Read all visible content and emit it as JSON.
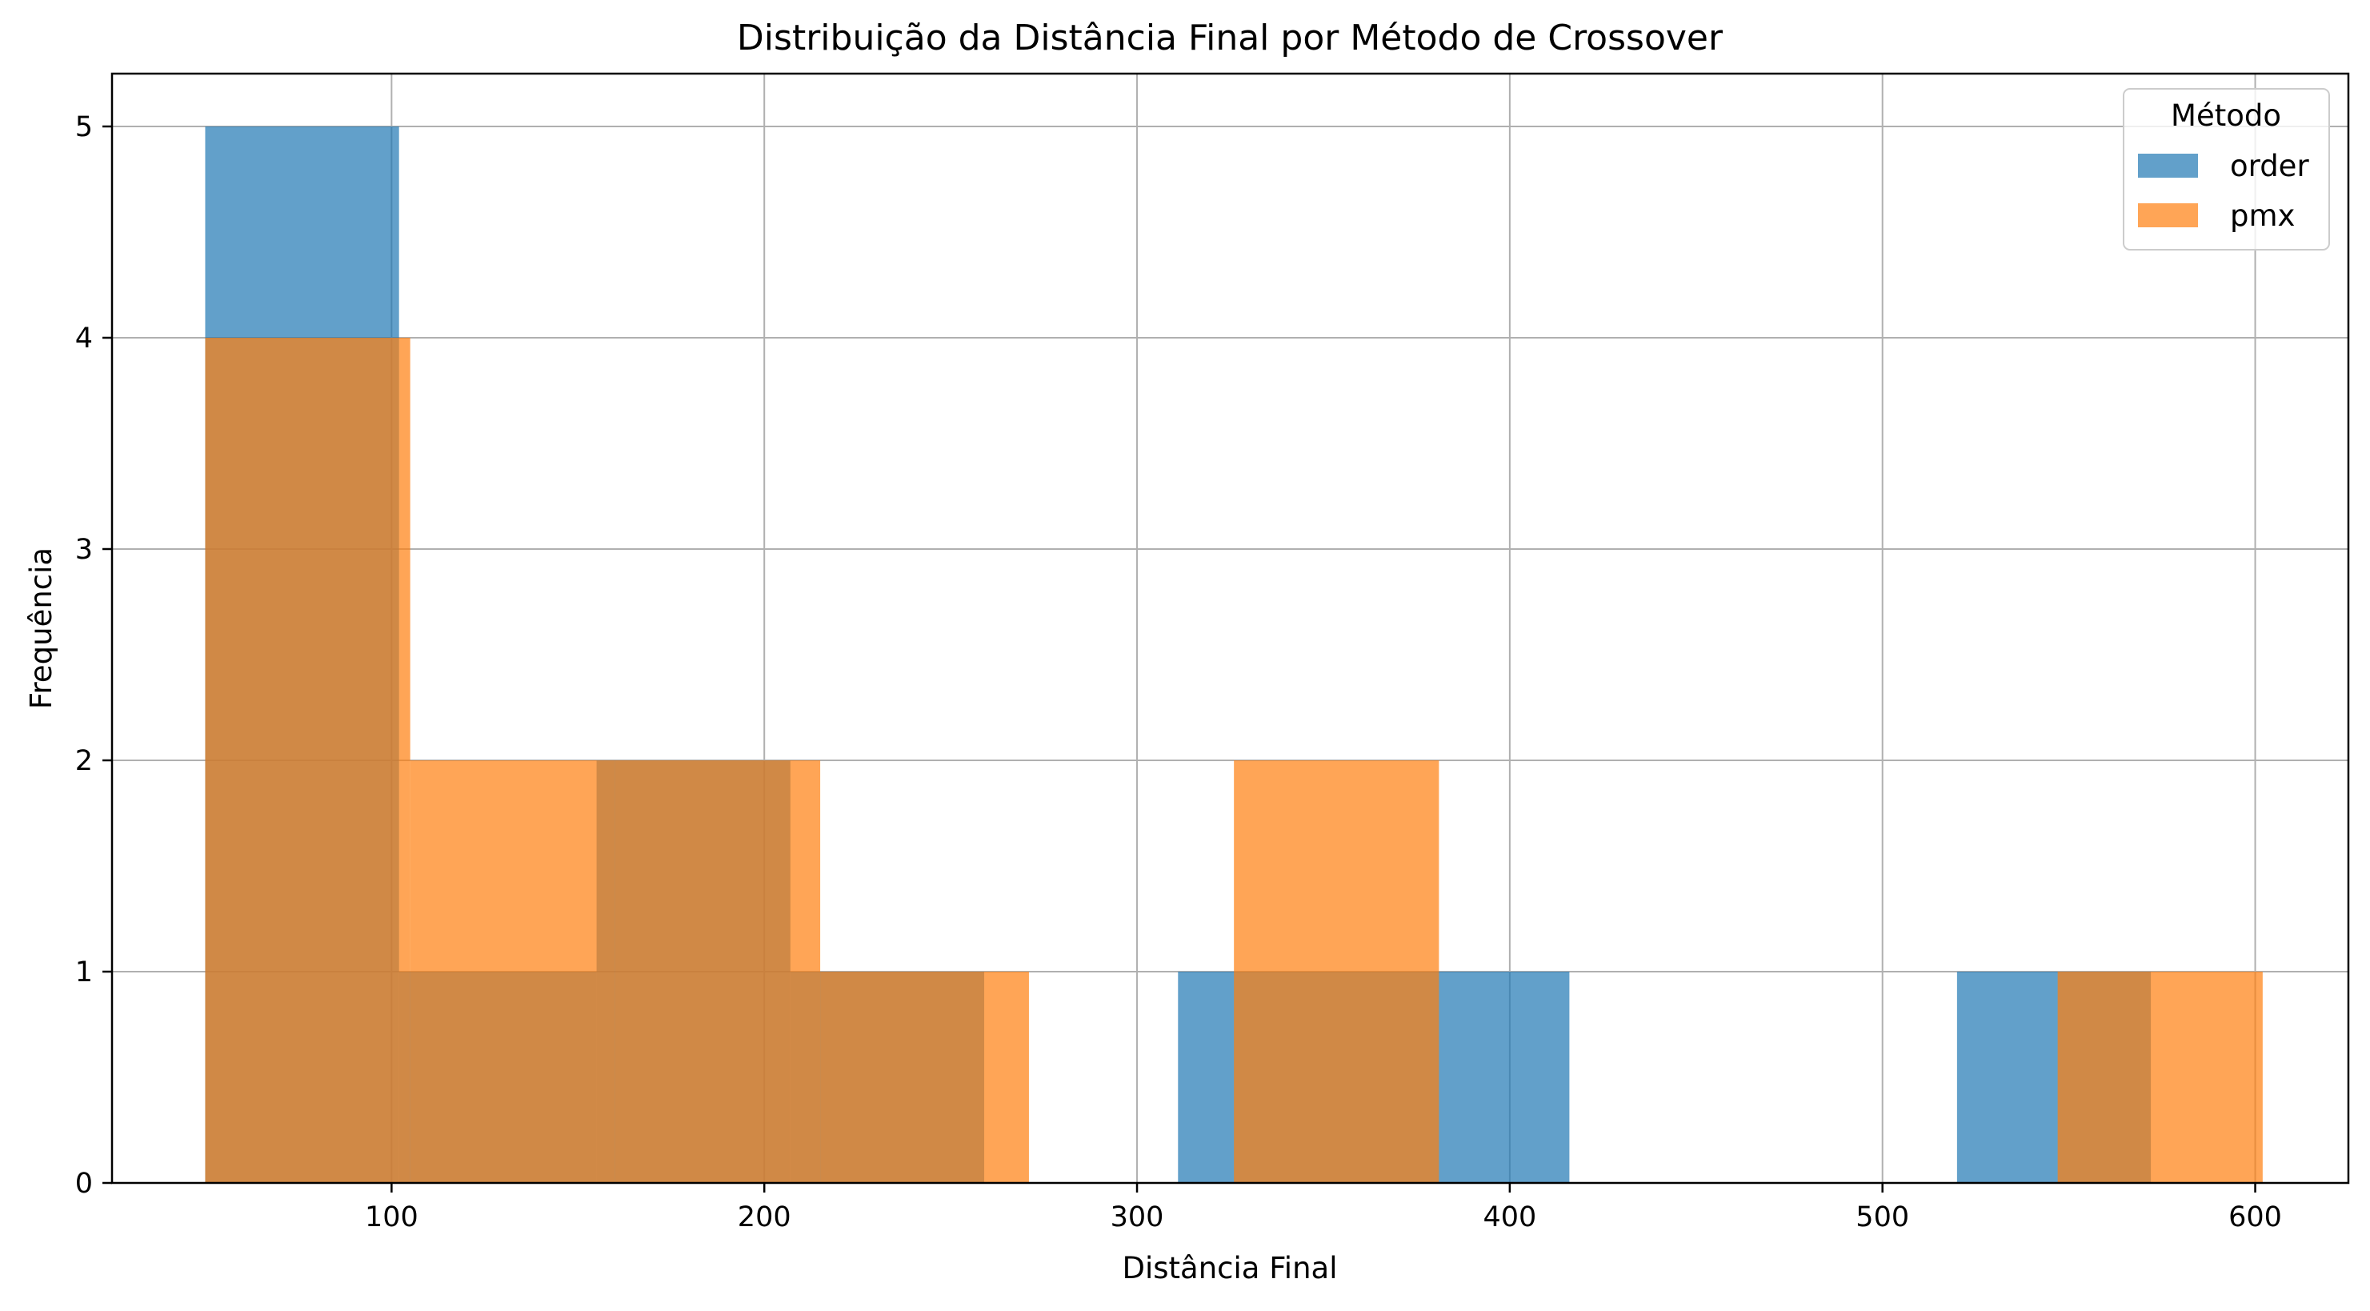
{
  "chart_data": {
    "type": "histogram",
    "title": "Distribuição da Distância Final por Método de Crossover",
    "xlabel": "Distância Final",
    "ylabel": "Frequência",
    "xlim": [
      25,
      625
    ],
    "ylim": [
      0,
      5.25
    ],
    "xticks": [
      100,
      200,
      300,
      400,
      500,
      600
    ],
    "yticks": [
      0,
      1,
      2,
      3,
      4,
      5
    ],
    "grid": true,
    "legend": {
      "title": "Método",
      "position": "top-right"
    },
    "series": [
      {
        "name": "order",
        "color": "#1f77b4",
        "opacity": 0.7,
        "bins": [
          {
            "x0": 50,
            "x1": 102,
            "count": 5
          },
          {
            "x0": 102,
            "x1": 155,
            "count": 1
          },
          {
            "x0": 155,
            "x1": 207,
            "count": 2
          },
          {
            "x0": 207,
            "x1": 259,
            "count": 1
          },
          {
            "x0": 259,
            "x1": 311,
            "count": 0
          },
          {
            "x0": 311,
            "x1": 363,
            "count": 1
          },
          {
            "x0": 363,
            "x1": 416,
            "count": 1
          },
          {
            "x0": 416,
            "x1": 468,
            "count": 0
          },
          {
            "x0": 468,
            "x1": 520,
            "count": 0
          },
          {
            "x0": 520,
            "x1": 572,
            "count": 1
          }
        ]
      },
      {
        "name": "pmx",
        "color": "#ff7f0e",
        "opacity": 0.7,
        "bins": [
          {
            "x0": 50,
            "x1": 105,
            "count": 4
          },
          {
            "x0": 105,
            "x1": 160,
            "count": 2
          },
          {
            "x0": 160,
            "x1": 215,
            "count": 2
          },
          {
            "x0": 215,
            "x1": 271,
            "count": 1
          },
          {
            "x0": 271,
            "x1": 326,
            "count": 0
          },
          {
            "x0": 326,
            "x1": 381,
            "count": 2
          },
          {
            "x0": 381,
            "x1": 436,
            "count": 0
          },
          {
            "x0": 436,
            "x1": 492,
            "count": 0
          },
          {
            "x0": 492,
            "x1": 547,
            "count": 0
          },
          {
            "x0": 547,
            "x1": 602,
            "count": 1
          }
        ]
      }
    ]
  }
}
